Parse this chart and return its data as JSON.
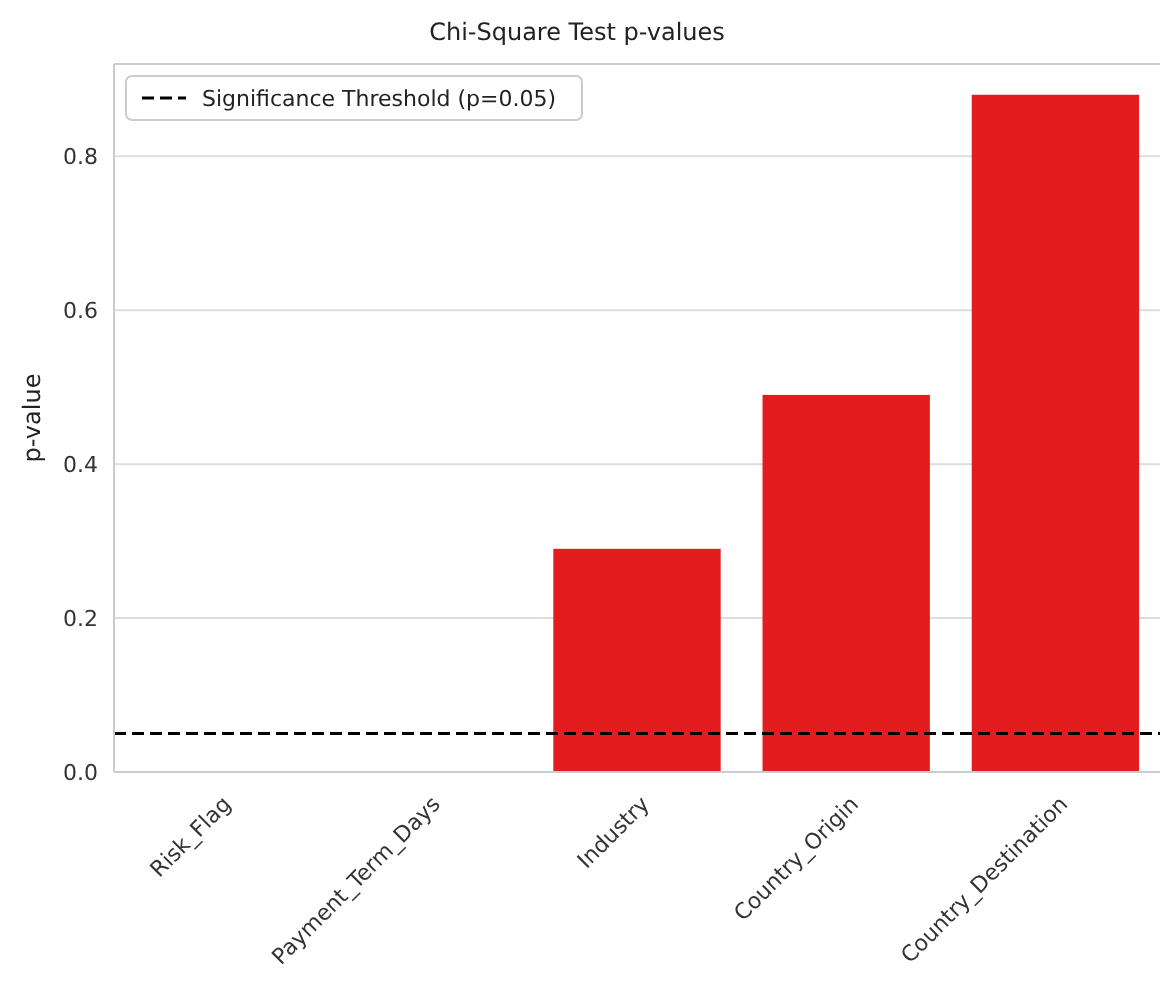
{
  "chart_data": {
    "type": "bar",
    "title": "Chi-Square Test p-values",
    "ylabel": "p-value",
    "categories": [
      "Risk_Flag",
      "Payment_Term_Days",
      "Industry",
      "Country_Origin",
      "Country_Destination"
    ],
    "values": [
      0,
      0,
      0.29,
      0.49,
      0.88
    ],
    "color": "#e31d1e",
    "ylim": [
      0,
      0.92
    ],
    "yticks": [
      {
        "value": 0,
        "label": "0.0"
      },
      0.2,
      0.4,
      0.6,
      0.8
    ],
    "grid": "y",
    "ref_lines": [
      {
        "axis": "y",
        "value": 0.05,
        "label": "Significance Threshold (p=0.05)",
        "color": "#000000",
        "line_style": "dashed"
      }
    ],
    "legend": "top left"
  }
}
